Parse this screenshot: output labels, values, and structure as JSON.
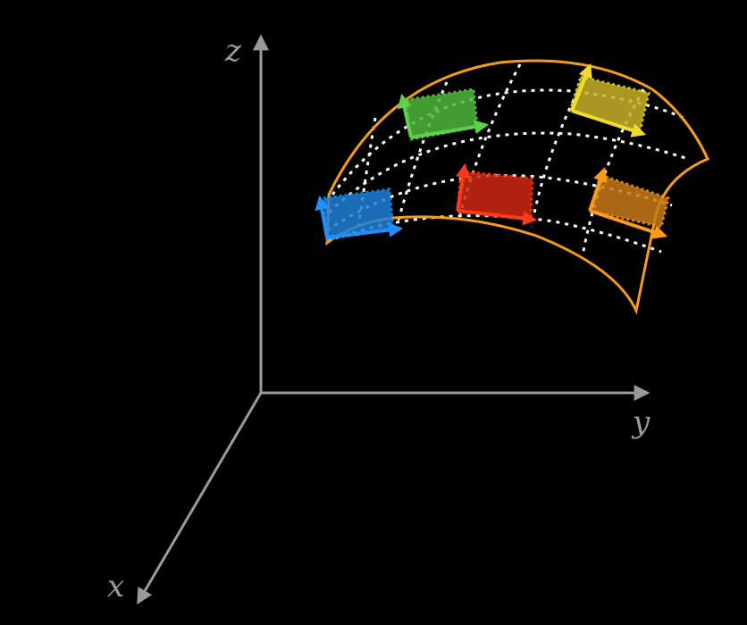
{
  "axes": {
    "x_label": "x",
    "y_label": "y",
    "z_label": "z"
  },
  "colors": {
    "background": "#000000",
    "axis": "#9a9a9a",
    "surface_edge": "#f39c1a",
    "grid": "#ffffff"
  },
  "patches": [
    {
      "name": "blue-patch",
      "color": "#1f7fd8"
    },
    {
      "name": "green-patch",
      "color": "#4fb83a"
    },
    {
      "name": "red-patch",
      "color": "#d12a14"
    },
    {
      "name": "yellow-patch",
      "color": "#e0c82a"
    },
    {
      "name": "orange-patch",
      "color": "#e08a1a"
    }
  ]
}
